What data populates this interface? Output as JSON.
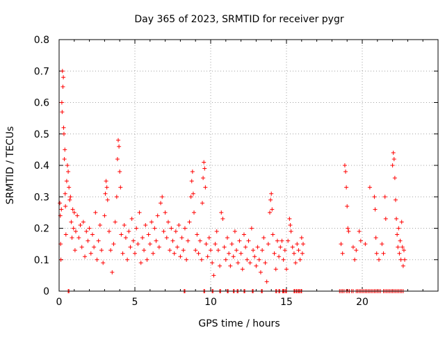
{
  "chart_data": {
    "type": "scatter",
    "title": "Day 365 of 2023, SRMTID for receiver pygr",
    "xlabel": "GPS time / hours",
    "ylabel": "SRMTID / TECUs",
    "xlim": [
      0,
      25
    ],
    "ylim": [
      0,
      0.8
    ],
    "xticks": [
      0,
      5,
      10,
      15,
      20
    ],
    "xtick_labels": [
      "0",
      "5",
      "10",
      "15",
      "20"
    ],
    "yticks": [
      0,
      0.1,
      0.2,
      0.3,
      0.4,
      0.5,
      0.6,
      0.7,
      0.8
    ],
    "ytick_labels": [
      "0",
      "0.1",
      "0.2",
      "0.3",
      "0.4",
      "0.5",
      "0.6",
      "0.7",
      "0.8"
    ],
    "grid": true,
    "marker": "plus",
    "color": "#ff0000",
    "series": [
      {
        "name": "SRMTID",
        "points": [
          [
            0.05,
            0.28
          ],
          [
            0.08,
            0.24
          ],
          [
            0.1,
            0.15
          ],
          [
            0.12,
            0.1
          ],
          [
            0.15,
            0.26
          ],
          [
            0.18,
            0.6
          ],
          [
            0.2,
            0.57
          ],
          [
            0.22,
            0.7
          ],
          [
            0.25,
            0.65
          ],
          [
            0.28,
            0.68
          ],
          [
            0.3,
            0.52
          ],
          [
            0.32,
            0.5
          ],
          [
            0.35,
            0.42
          ],
          [
            0.38,
            0.45
          ],
          [
            0.4,
            0.31
          ],
          [
            0.42,
            0.27
          ],
          [
            0.45,
            0.18
          ],
          [
            0.5,
            0.35
          ],
          [
            0.55,
            0.4
          ],
          [
            0.6,
            0.38
          ],
          [
            0.65,
            0.33
          ],
          [
            0.7,
            0.29
          ],
          [
            0.75,
            0.3
          ],
          [
            0.8,
            0.22
          ],
          [
            0.85,
            0.17
          ],
          [
            0.9,
            0.26
          ],
          [
            0.95,
            0.2
          ],
          [
            1.0,
            0.25
          ],
          [
            1.05,
            0.13
          ],
          [
            1.1,
            0.19
          ],
          [
            1.2,
            0.24
          ],
          [
            1.3,
            0.17
          ],
          [
            1.4,
            0.21
          ],
          [
            1.5,
            0.14
          ],
          [
            1.6,
            0.22
          ],
          [
            1.7,
            0.11
          ],
          [
            1.8,
            0.19
          ],
          [
            1.9,
            0.16
          ],
          [
            2.0,
            0.2
          ],
          [
            2.1,
            0.12
          ],
          [
            2.2,
            0.18
          ],
          [
            2.3,
            0.14
          ],
          [
            2.4,
            0.25
          ],
          [
            2.5,
            0.1
          ],
          [
            2.6,
            0.16
          ],
          [
            2.7,
            0.21
          ],
          [
            2.8,
            0.13
          ],
          [
            2.9,
            0.09
          ],
          [
            3.0,
            0.24
          ],
          [
            3.05,
            0.31
          ],
          [
            3.1,
            0.35
          ],
          [
            3.15,
            0.33
          ],
          [
            3.2,
            0.29
          ],
          [
            3.3,
            0.19
          ],
          [
            3.4,
            0.13
          ],
          [
            3.5,
            0.06
          ],
          [
            3.6,
            0.15
          ],
          [
            3.7,
            0.22
          ],
          [
            3.8,
            0.3
          ],
          [
            3.85,
            0.42
          ],
          [
            3.9,
            0.48
          ],
          [
            3.95,
            0.46
          ],
          [
            4.0,
            0.38
          ],
          [
            4.05,
            0.33
          ],
          [
            4.1,
            0.18
          ],
          [
            4.2,
            0.12
          ],
          [
            4.3,
            0.21
          ],
          [
            4.4,
            0.17
          ],
          [
            4.5,
            0.1
          ],
          [
            4.6,
            0.19
          ],
          [
            4.7,
            0.14
          ],
          [
            4.8,
            0.23
          ],
          [
            4.9,
            0.16
          ],
          [
            5.0,
            0.12
          ],
          [
            5.1,
            0.2
          ],
          [
            5.2,
            0.15
          ],
          [
            5.3,
            0.25
          ],
          [
            5.4,
            0.09
          ],
          [
            5.5,
            0.17
          ],
          [
            5.6,
            0.13
          ],
          [
            5.7,
            0.21
          ],
          [
            5.8,
            0.1
          ],
          [
            5.9,
            0.18
          ],
          [
            6.0,
            0.15
          ],
          [
            6.1,
            0.22
          ],
          [
            6.2,
            0.12
          ],
          [
            6.3,
            0.2
          ],
          [
            6.4,
            0.16
          ],
          [
            6.5,
            0.24
          ],
          [
            6.6,
            0.14
          ],
          [
            6.7,
            0.28
          ],
          [
            6.8,
            0.3
          ],
          [
            6.9,
            0.19
          ],
          [
            7.0,
            0.25
          ],
          [
            7.1,
            0.17
          ],
          [
            7.2,
            0.22
          ],
          [
            7.3,
            0.13
          ],
          [
            7.4,
            0.2
          ],
          [
            7.5,
            0.16
          ],
          [
            7.6,
            0.12
          ],
          [
            7.7,
            0.19
          ],
          [
            7.8,
            0.14
          ],
          [
            7.9,
            0.21
          ],
          [
            8.0,
            0.11
          ],
          [
            8.1,
            0.17
          ],
          [
            8.2,
            0.13
          ],
          [
            8.3,
            0.2
          ],
          [
            8.4,
            0.1
          ],
          [
            8.5,
            0.16
          ],
          [
            8.6,
            0.22
          ],
          [
            8.7,
            0.3
          ],
          [
            8.75,
            0.35
          ],
          [
            8.8,
            0.38
          ],
          [
            8.85,
            0.31
          ],
          [
            8.9,
            0.25
          ],
          [
            9.0,
            0.13
          ],
          [
            9.1,
            0.18
          ],
          [
            9.2,
            0.12
          ],
          [
            9.3,
            0.16
          ],
          [
            9.4,
            0.1
          ],
          [
            9.45,
            0.28
          ],
          [
            9.5,
            0.36
          ],
          [
            9.55,
            0.41
          ],
          [
            9.6,
            0.39
          ],
          [
            9.65,
            0.33
          ],
          [
            9.7,
            0.15
          ],
          [
            9.8,
            0.11
          ],
          [
            9.9,
            0.17
          ],
          [
            10.0,
            0.13
          ],
          [
            10.1,
            0.09
          ],
          [
            10.2,
            0.05
          ],
          [
            10.3,
            0.15
          ],
          [
            10.4,
            0.19
          ],
          [
            10.5,
            0.13
          ],
          [
            10.6,
            0.08
          ],
          [
            10.7,
            0.25
          ],
          [
            10.8,
            0.23
          ],
          [
            10.9,
            0.14
          ],
          [
            11.0,
            0.1
          ],
          [
            11.1,
            0.17
          ],
          [
            11.2,
            0.12
          ],
          [
            11.3,
            0.08
          ],
          [
            11.4,
            0.15
          ],
          [
            11.5,
            0.11
          ],
          [
            11.6,
            0.19
          ],
          [
            11.7,
            0.13
          ],
          [
            11.8,
            0.09
          ],
          [
            11.9,
            0.16
          ],
          [
            12.0,
            0.12
          ],
          [
            12.1,
            0.07
          ],
          [
            12.2,
            0.18
          ],
          [
            12.3,
            0.14
          ],
          [
            12.4,
            0.1
          ],
          [
            12.5,
            0.16
          ],
          [
            12.6,
            0.09
          ],
          [
            12.7,
            0.2
          ],
          [
            12.8,
            0.13
          ],
          [
            12.9,
            0.11
          ],
          [
            13.0,
            0.08
          ],
          [
            13.1,
            0.14
          ],
          [
            13.2,
            0.1
          ],
          [
            13.3,
            0.06
          ],
          [
            13.4,
            0.13
          ],
          [
            13.5,
            0.17
          ],
          [
            13.6,
            0.09
          ],
          [
            13.7,
            0.03
          ],
          [
            13.8,
            0.15
          ],
          [
            13.9,
            0.25
          ],
          [
            13.95,
            0.29
          ],
          [
            14.0,
            0.31
          ],
          [
            14.05,
            0.26
          ],
          [
            14.1,
            0.18
          ],
          [
            14.2,
            0.12
          ],
          [
            14.3,
            0.07
          ],
          [
            14.4,
            0.16
          ],
          [
            14.5,
            0.11
          ],
          [
            14.6,
            0.14
          ],
          [
            14.7,
            0.16
          ],
          [
            14.8,
            0.1
          ],
          [
            14.9,
            0.13
          ],
          [
            15.0,
            0.07
          ],
          [
            15.1,
            0.16
          ],
          [
            15.2,
            0.23
          ],
          [
            15.25,
            0.21
          ],
          [
            15.3,
            0.19
          ],
          [
            15.4,
            0.14
          ],
          [
            15.5,
            0.12
          ],
          [
            15.6,
            0.09
          ],
          [
            15.7,
            0.15
          ],
          [
            15.8,
            0.13
          ],
          [
            15.9,
            0.1
          ],
          [
            16.0,
            0.17
          ],
          [
            16.05,
            0.12
          ],
          [
            16.1,
            0.15
          ],
          [
            18.6,
            0.15
          ],
          [
            18.7,
            0.12
          ],
          [
            18.85,
            0.4
          ],
          [
            18.9,
            0.38
          ],
          [
            18.95,
            0.33
          ],
          [
            19.0,
            0.27
          ],
          [
            19.05,
            0.2
          ],
          [
            19.1,
            0.19
          ],
          [
            19.4,
            0.14
          ],
          [
            19.5,
            0.1
          ],
          [
            19.6,
            0.13
          ],
          [
            19.8,
            0.19
          ],
          [
            19.9,
            0.16
          ],
          [
            20.2,
            0.15
          ],
          [
            20.5,
            0.33
          ],
          [
            20.8,
            0.3
          ],
          [
            20.85,
            0.26
          ],
          [
            20.9,
            0.17
          ],
          [
            20.95,
            0.12
          ],
          [
            21.1,
            0.1
          ],
          [
            21.3,
            0.15
          ],
          [
            21.4,
            0.12
          ],
          [
            21.5,
            0.3
          ],
          [
            21.55,
            0.23
          ],
          [
            22.0,
            0.4
          ],
          [
            22.05,
            0.44
          ],
          [
            22.1,
            0.42
          ],
          [
            22.15,
            0.36
          ],
          [
            22.2,
            0.29
          ],
          [
            22.25,
            0.23
          ],
          [
            22.3,
            0.18
          ],
          [
            22.35,
            0.14
          ],
          [
            22.4,
            0.2
          ],
          [
            22.45,
            0.12
          ],
          [
            22.5,
            0.16
          ],
          [
            22.55,
            0.1
          ],
          [
            22.6,
            0.22
          ],
          [
            22.65,
            0.14
          ],
          [
            22.7,
            0.08
          ],
          [
            22.75,
            0.13
          ],
          [
            22.8,
            0.1
          ]
        ],
        "zero_points": [
          0.6,
          0.65,
          8.25,
          8.3,
          9.55,
          9.6,
          10.1,
          10.15,
          10.6,
          10.65,
          11.1,
          11.15,
          11.5,
          11.55,
          11.75,
          11.8,
          12.2,
          12.25,
          12.75,
          12.8,
          13.35,
          13.4,
          14.3,
          14.35,
          14.5,
          14.55,
          14.75,
          14.8,
          14.85,
          14.95,
          15.0,
          15.5,
          15.55,
          15.65,
          15.7,
          15.8,
          15.85,
          15.95,
          16.0,
          18.5,
          18.6,
          18.7,
          18.8,
          18.95,
          19.05,
          19.15,
          19.3,
          19.4,
          19.6,
          19.7,
          19.8,
          19.9,
          20.0,
          20.1,
          20.2,
          20.3,
          20.4,
          20.5,
          20.6,
          20.7,
          20.8,
          20.9,
          21.0,
          21.1,
          21.2,
          21.4,
          21.5,
          21.6,
          21.7,
          21.8,
          21.9,
          22.0,
          22.1,
          22.2,
          22.3,
          22.4,
          22.5,
          22.6,
          22.7
        ]
      }
    ]
  }
}
